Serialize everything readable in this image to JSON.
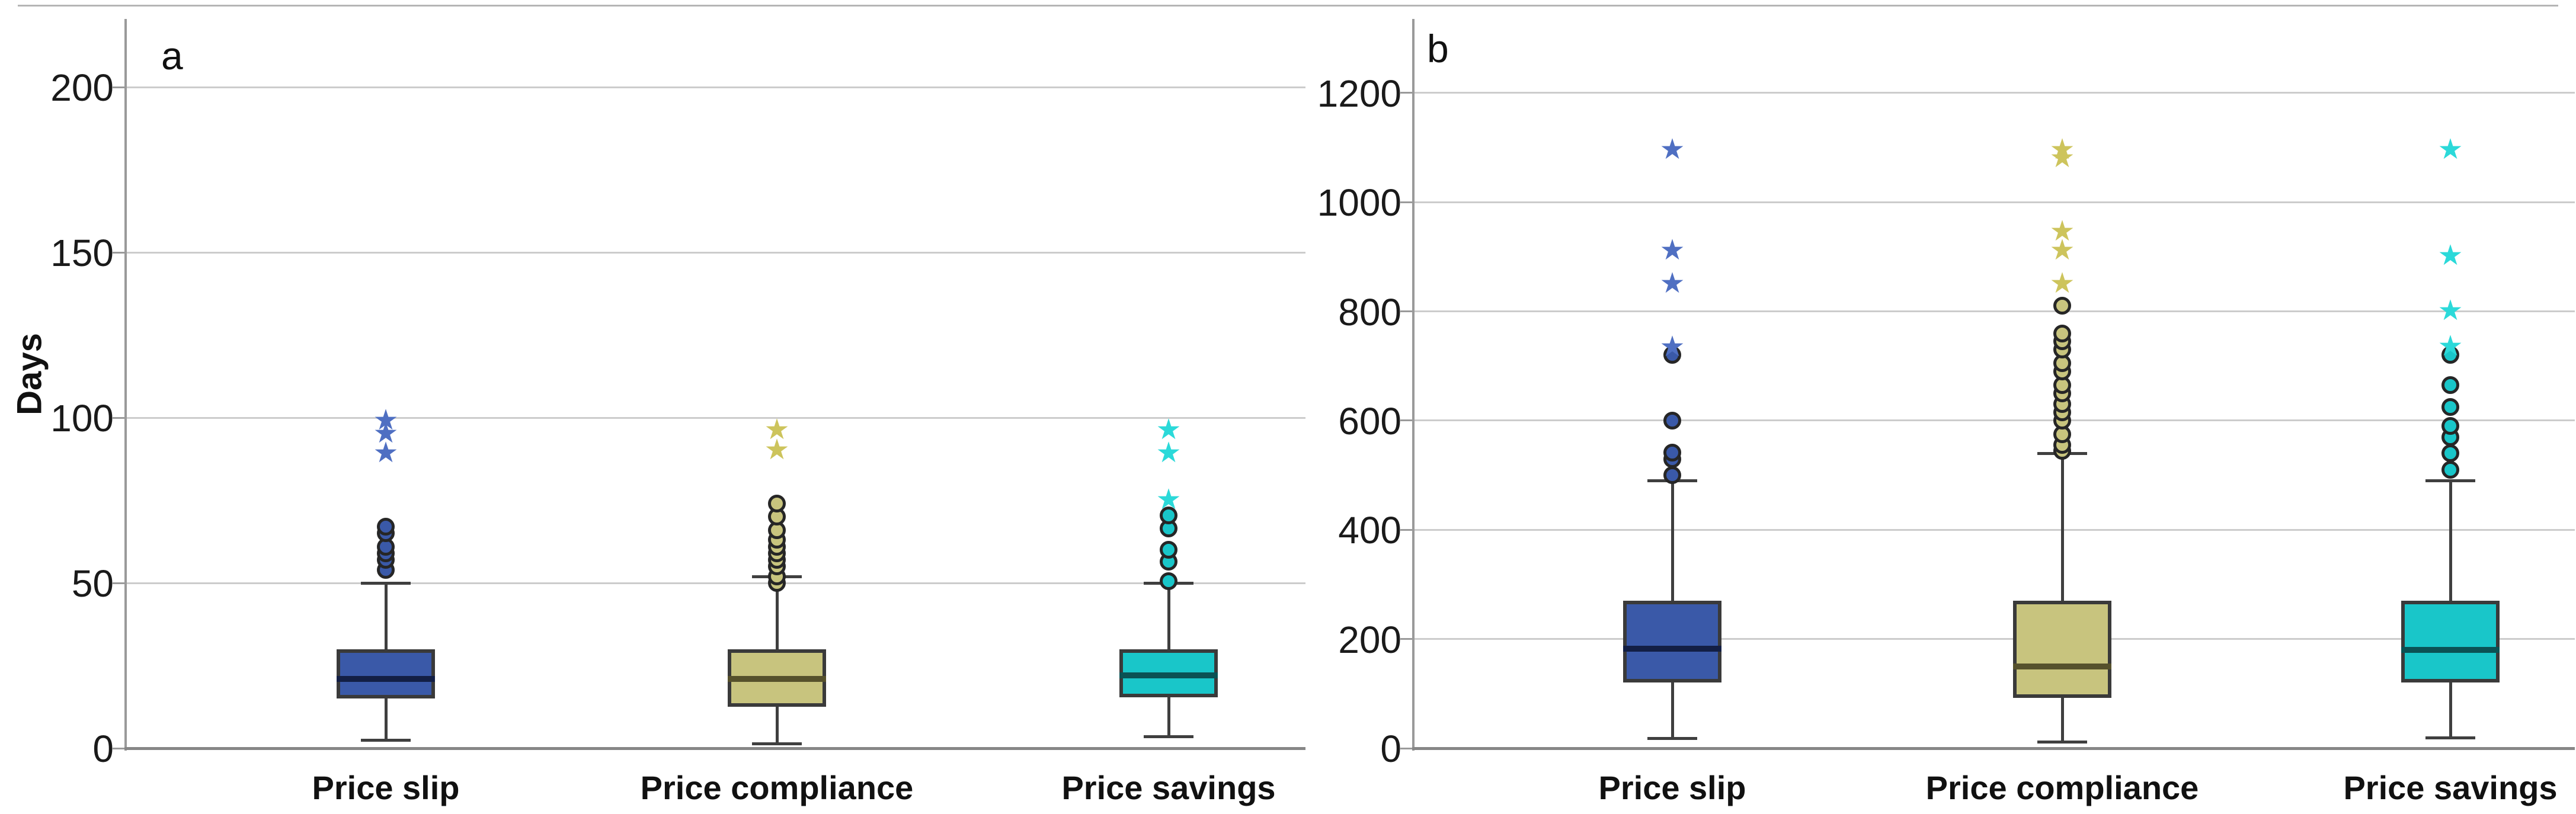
{
  "figure": {
    "ylabel": "Days",
    "background": "#ffffff",
    "panel_letters": [
      "a",
      "b"
    ]
  },
  "chart_data": [
    {
      "type": "boxplot",
      "panel_label": "a",
      "ylabel": "Days",
      "ylim": [
        0,
        215
      ],
      "yticks": [
        0,
        50,
        100,
        150,
        200
      ],
      "grid": "horizontal",
      "legend": "none",
      "categories": [
        "Price slip",
        "Price compliance",
        "Price savings"
      ],
      "series": [
        {
          "category": "Price slip",
          "color": "#3a59a8",
          "median_color": "#131f45",
          "star_color": "#4f6fc2",
          "whisker_low": 2.5,
          "q1": 15,
          "median": 21,
          "q3": 30,
          "whisker_high": 50,
          "outliers_circles": [
            54,
            57,
            59,
            61,
            65,
            67
          ],
          "outliers_stars": [
            89,
            95,
            99
          ]
        },
        {
          "category": "Price compliance",
          "color": "#c8c47e",
          "median_color": "#56512c",
          "star_color": "#cdc45c",
          "whisker_low": 1.5,
          "q1": 12.5,
          "median": 21,
          "q3": 30,
          "whisker_high": 52,
          "outliers_circles": [
            50,
            52,
            55,
            57,
            59,
            61,
            63,
            66,
            70,
            74
          ],
          "outliers_stars": [
            90,
            96
          ]
        },
        {
          "category": "Price savings",
          "color": "#19c6c9",
          "median_color": "#0b5254",
          "star_color": "#2bd9d9",
          "whisker_low": 3.5,
          "q1": 15.5,
          "median": 22,
          "q3": 30,
          "whisker_high": 50,
          "outliers_circles": [
            50.5,
            56.5,
            60,
            66.5,
            70.5
          ],
          "outliers_stars": [
            75,
            89,
            96
          ]
        }
      ]
    },
    {
      "type": "boxplot",
      "panel_label": "b",
      "ylabel": "",
      "ylim": [
        0,
        1200
      ],
      "yticks": [
        0,
        200,
        400,
        600,
        800,
        1000,
        1200
      ],
      "grid": "horizontal",
      "legend": "none",
      "categories": [
        "Price slip",
        "Price compliance",
        "Price savings"
      ],
      "series": [
        {
          "category": "Price slip",
          "color": "#3a59a8",
          "median_color": "#131f45",
          "star_color": "#4f6fc2",
          "whisker_low": 18,
          "q1": 120,
          "median": 182,
          "q3": 270,
          "whisker_high": 490,
          "outliers_circles": [
            500,
            530,
            541,
            600,
            720
          ],
          "outliers_stars": [
            733,
            850,
            910,
            1095
          ]
        },
        {
          "category": "Price compliance",
          "color": "#c8c47e",
          "median_color": "#56512c",
          "star_color": "#cdc45c",
          "whisker_low": 12,
          "q1": 92,
          "median": 150,
          "q3": 270,
          "whisker_high": 540,
          "outliers_circles": [
            545,
            555,
            575,
            600,
            615,
            630,
            650,
            665,
            690,
            705,
            730,
            745,
            760,
            810
          ],
          "outliers_stars": [
            850,
            910,
            945,
            1080,
            1095
          ]
        },
        {
          "category": "Price savings",
          "color": "#19c6c9",
          "median_color": "#0b5254",
          "star_color": "#2bd9d9",
          "whisker_low": 20,
          "q1": 120,
          "median": 180,
          "q3": 270,
          "whisker_high": 490,
          "outliers_circles": [
            510,
            540,
            570,
            590,
            625,
            665,
            720
          ],
          "outliers_stars": [
            735,
            800,
            900,
            1095
          ]
        }
      ]
    }
  ]
}
